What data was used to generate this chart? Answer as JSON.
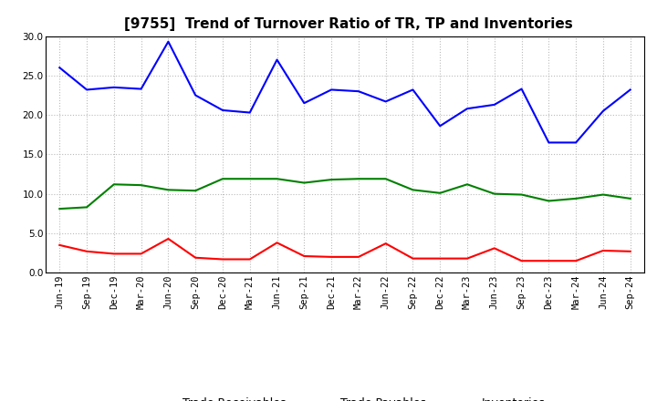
{
  "title": "[9755]  Trend of Turnover Ratio of TR, TP and Inventories",
  "x_labels": [
    "Jun-19",
    "Sep-19",
    "Dec-19",
    "Mar-20",
    "Jun-20",
    "Sep-20",
    "Dec-20",
    "Mar-21",
    "Jun-21",
    "Sep-21",
    "Dec-21",
    "Mar-22",
    "Jun-22",
    "Sep-22",
    "Dec-22",
    "Mar-23",
    "Jun-23",
    "Sep-23",
    "Dec-23",
    "Mar-24",
    "Jun-24",
    "Sep-24"
  ],
  "trade_receivables": [
    3.5,
    2.7,
    2.4,
    2.4,
    4.3,
    1.9,
    1.7,
    1.7,
    3.8,
    2.1,
    2.0,
    2.0,
    3.7,
    1.8,
    1.8,
    1.8,
    3.1,
    1.5,
    1.5,
    1.5,
    2.8,
    2.7
  ],
  "trade_payables": [
    26.0,
    23.2,
    23.5,
    23.3,
    29.3,
    22.5,
    20.6,
    20.3,
    27.0,
    21.5,
    23.2,
    23.0,
    21.7,
    23.2,
    18.6,
    20.8,
    21.3,
    23.3,
    16.5,
    16.5,
    20.5,
    23.2
  ],
  "inventories": [
    8.1,
    8.3,
    11.2,
    11.1,
    10.5,
    10.4,
    11.9,
    11.9,
    11.9,
    11.4,
    11.8,
    11.9,
    11.9,
    10.5,
    10.1,
    11.2,
    10.0,
    9.9,
    9.1,
    9.4,
    9.9,
    9.4
  ],
  "ylim": [
    0.0,
    30.0
  ],
  "yticks": [
    0.0,
    5.0,
    10.0,
    15.0,
    20.0,
    25.0,
    30.0
  ],
  "tr_color": "#ff0000",
  "tp_color": "#0000ff",
  "inv_color": "#008000",
  "bg_color": "#ffffff",
  "plot_bg_color": "#ffffff",
  "grid_color": "#aaaaaa",
  "title_fontsize": 11,
  "legend_fontsize": 9,
  "tick_fontsize": 7.5
}
